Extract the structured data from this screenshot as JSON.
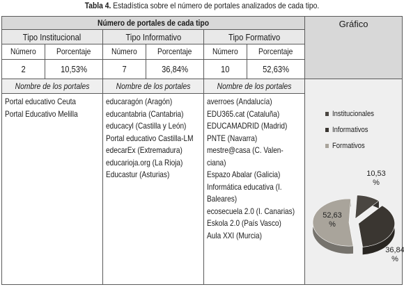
{
  "caption": {
    "bold": "Tabla 4.",
    "text": " Estadística sobre el número de portales analizados de cada tipo."
  },
  "table": {
    "title": "Número de portales de cada tipo",
    "types": [
      {
        "name": "Tipo Institucional",
        "numero": "2",
        "porcentaje": "10,53%",
        "portales": [
          "Portal educativo Ceuta",
          "Portal Educativo Melilla"
        ]
      },
      {
        "name": "Tipo Informativo",
        "numero": "7",
        "porcentaje": "36,84%",
        "portales": [
          "educaragón (Aragón)",
          "educantabria (Cantabria)",
          "educacyl (Castilla y León)",
          "Portal educativo Castilla-LM",
          "edecarEx (Extremadura)",
          "educarioja.org (La Rioja)",
          "Educastur (Asturias)"
        ]
      },
      {
        "name": "Tipo Formativo",
        "numero": "10",
        "porcentaje": "52,63%",
        "portales": [
          "averroes (Andalucía)",
          "EDU365.cat (Cataluña)",
          "EDUCAMADRID (Madrid)",
          "PNTE (Navarra)",
          "mestre@casa (C. Valen-",
          "ciana)",
          "Espazo Abalar (Galicia)",
          "Informática educativa (I.",
          "Baleares)",
          "ecosecuela 2.0 (I. Canarias)",
          "Eskola 2.0 (País Vasco)",
          "Aula XXI (Murcia)"
        ]
      }
    ],
    "col_numero": "Número",
    "col_porcentaje": "Porcentaje",
    "col_nombres": "Nombre de los portales",
    "grafico": "Gráfico"
  },
  "chart_data": {
    "type": "pie",
    "categories": [
      "Institucionales",
      "Informativos",
      "Formativos"
    ],
    "values": [
      10.53,
      36.84,
      52.63
    ],
    "value_labels": [
      "10,53\n%",
      "36,84\n%",
      "52,63\n%"
    ],
    "colors": [
      "#4a4641",
      "#3a3631",
      "#a9a49b"
    ],
    "legend_position": "left-top"
  }
}
